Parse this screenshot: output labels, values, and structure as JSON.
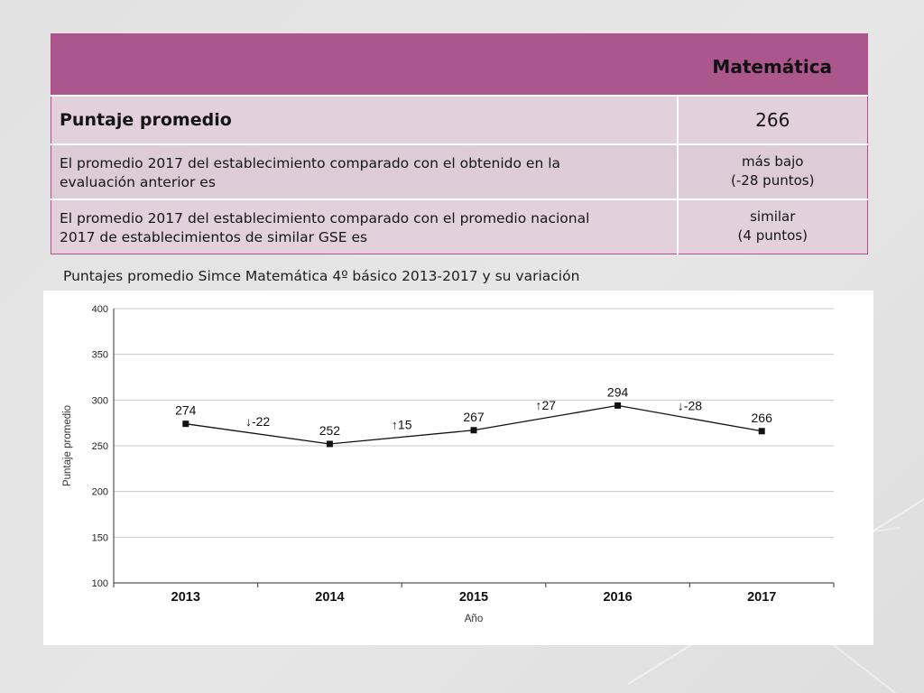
{
  "table": {
    "subject_header": "Matemática",
    "rows": [
      {
        "label_lines": [
          "Puntaje promedio"
        ],
        "value_lines": [
          "266"
        ]
      },
      {
        "label_lines": [
          "El promedio 2017 del establecimiento comparado con el obtenido en la",
          "evaluación anterior es"
        ],
        "value_lines": [
          "más bajo",
          "(-28 puntos)"
        ]
      },
      {
        "label_lines": [
          "El promedio 2017 del establecimiento comparado con el promedio nacional",
          "2017 de establecimientos de similar GSE es"
        ],
        "value_lines": [
          "similar",
          "(4 puntos)"
        ]
      }
    ]
  },
  "chart_caption": "Puntajes promedio Simce Matemática 4º básico 2013-2017 y su variación",
  "chart_data": {
    "type": "line",
    "title": "",
    "xlabel": "Año",
    "ylabel": "Puntaje promedio",
    "categories": [
      "2013",
      "2014",
      "2015",
      "2016",
      "2017"
    ],
    "values": [
      274,
      252,
      267,
      294,
      266
    ],
    "data_labels": [
      "274",
      "252",
      "267",
      "294",
      "266"
    ],
    "variations": [
      "↓-22",
      "↑15",
      "↑27",
      "↓-28"
    ],
    "ylim": [
      100,
      400
    ],
    "yticks": [
      "100",
      "150",
      "200",
      "250",
      "300",
      "350",
      "400"
    ],
    "grid": true,
    "legend": "none",
    "line_color": "#111111"
  }
}
